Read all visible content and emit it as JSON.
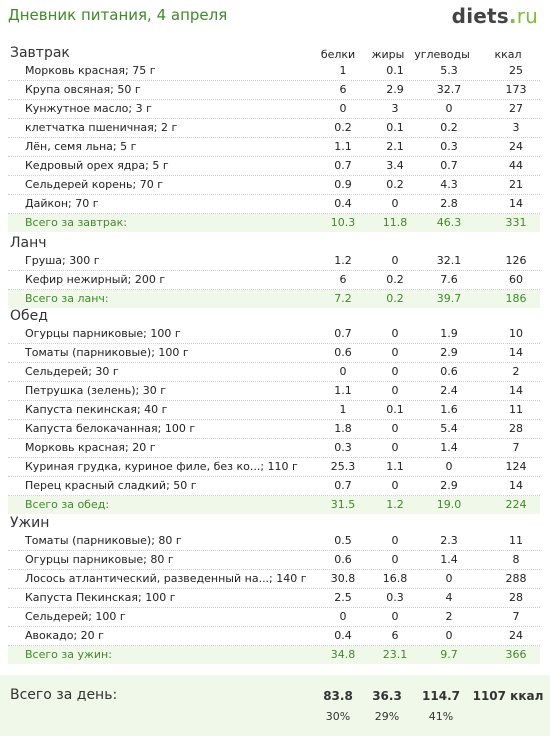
{
  "header": {
    "title": "Дневник питания, 4 апреля",
    "logo_main": "diets",
    "logo_dot": ".",
    "logo_tld": "ru"
  },
  "columns": {
    "protein": "белки",
    "fat": "жиры",
    "carbs": "углеводы",
    "kcal": "ккал"
  },
  "sections": [
    {
      "title": "Завтрак",
      "items": [
        {
          "name": "Морковь красная; 75 г",
          "p": "1",
          "f": "0.1",
          "c": "5.3",
          "k": "25"
        },
        {
          "name": "Крупа овсяная; 50 г",
          "p": "6",
          "f": "2.9",
          "c": "32.7",
          "k": "173"
        },
        {
          "name": "Кунжутное масло; 3 г",
          "p": "0",
          "f": "3",
          "c": "0",
          "k": "27"
        },
        {
          "name": "клетчатка пшеничная; 2 г",
          "p": "0.2",
          "f": "0.1",
          "c": "0.2",
          "k": "3"
        },
        {
          "name": "Лён, семя льна; 5 г",
          "p": "1.1",
          "f": "2.1",
          "c": "0.3",
          "k": "24"
        },
        {
          "name": "Кедровый орех ядра; 5 г",
          "p": "0.7",
          "f": "3.4",
          "c": "0.7",
          "k": "44"
        },
        {
          "name": "Сельдерей корень; 70 г",
          "p": "0.9",
          "f": "0.2",
          "c": "4.3",
          "k": "21"
        },
        {
          "name": "Дайкон; 70 г",
          "p": "0.4",
          "f": "0",
          "c": "2.8",
          "k": "14"
        }
      ],
      "total": {
        "label": "Всего за завтрак:",
        "p": "10.3",
        "f": "11.8",
        "c": "46.3",
        "k": "331"
      }
    },
    {
      "title": "Ланч",
      "items": [
        {
          "name": "Груша; 300 г",
          "p": "1.2",
          "f": "0",
          "c": "32.1",
          "k": "126"
        },
        {
          "name": "Кефир нежирный; 200 г",
          "p": "6",
          "f": "0.2",
          "c": "7.6",
          "k": "60"
        }
      ],
      "total": {
        "label": "Всего за ланч:",
        "p": "7.2",
        "f": "0.2",
        "c": "39.7",
        "k": "186"
      }
    },
    {
      "title": "Обед",
      "items": [
        {
          "name": "Огурцы парниковые; 100 г",
          "p": "0.7",
          "f": "0",
          "c": "1.9",
          "k": "10"
        },
        {
          "name": "Томаты (парниковые); 100 г",
          "p": "0.6",
          "f": "0",
          "c": "2.9",
          "k": "14"
        },
        {
          "name": "Сельдерей; 30 г",
          "p": "0",
          "f": "0",
          "c": "0.6",
          "k": "2"
        },
        {
          "name": "Петрушка (зелень); 30 г",
          "p": "1.1",
          "f": "0",
          "c": "2.4",
          "k": "14"
        },
        {
          "name": "Капуста пекинская; 40 г",
          "p": "1",
          "f": "0.1",
          "c": "1.6",
          "k": "11"
        },
        {
          "name": "Капуста белокачанная; 100 г",
          "p": "1.8",
          "f": "0",
          "c": "5.4",
          "k": "28"
        },
        {
          "name": "Морковь красная; 20 г",
          "p": "0.3",
          "f": "0",
          "c": "1.4",
          "k": "7"
        },
        {
          "name": "Куриная грудка, куриное филе, без ко...; 110 г",
          "p": "25.3",
          "f": "1.1",
          "c": "0",
          "k": "124"
        },
        {
          "name": "Перец красный сладкий; 50 г",
          "p": "0.7",
          "f": "0",
          "c": "2.9",
          "k": "14"
        }
      ],
      "total": {
        "label": "Всего за обед:",
        "p": "31.5",
        "f": "1.2",
        "c": "19.0",
        "k": "224"
      }
    },
    {
      "title": "Ужин",
      "items": [
        {
          "name": "Томаты (парниковые); 80 г",
          "p": "0.5",
          "f": "0",
          "c": "2.3",
          "k": "11"
        },
        {
          "name": "Огурцы парниковые; 80 г",
          "p": "0.6",
          "f": "0",
          "c": "1.4",
          "k": "8"
        },
        {
          "name": "Лосось атлантический, разведенный на...; 140 г",
          "p": "30.8",
          "f": "16.8",
          "c": "0",
          "k": "288"
        },
        {
          "name": "Капуста Пекинская; 100 г",
          "p": "2.5",
          "f": "0.3",
          "c": "4",
          "k": "28"
        },
        {
          "name": "Сельдерей; 100 г",
          "p": "0",
          "f": "0",
          "c": "2",
          "k": "7"
        },
        {
          "name": "Авокадо; 20 г",
          "p": "0.4",
          "f": "6",
          "c": "0",
          "k": "24"
        }
      ],
      "total": {
        "label": "Всего за ужин:",
        "p": "34.8",
        "f": "23.1",
        "c": "9.7",
        "k": "366"
      }
    }
  ],
  "day_total": {
    "label": "Всего за день:",
    "p": "83.8",
    "f": "36.3",
    "c": "114.7",
    "k": "1107 ккал",
    "p_pct": "30%",
    "f_pct": "29%",
    "c_pct": "41%"
  },
  "colors": {
    "green_text": "#3f8a2a",
    "total_bg": "#f0f8ea"
  }
}
